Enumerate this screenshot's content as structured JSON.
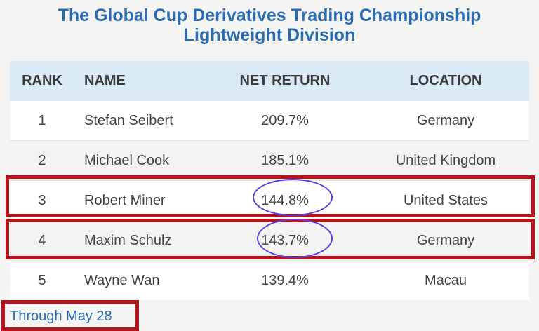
{
  "title": {
    "line1": "The Global Cup Derivatives Trading Championship",
    "line2": "Lightweight Division"
  },
  "table": {
    "headers": {
      "rank": "RANK",
      "name": "NAME",
      "net_return": "NET RETURN",
      "location": "LOCATION"
    },
    "rows": [
      {
        "rank": "1",
        "name": "Stefan Seibert",
        "net_return": "209.7%",
        "location": "Germany"
      },
      {
        "rank": "2",
        "name": "Michael Cook",
        "net_return": "185.1%",
        "location": "United Kingdom"
      },
      {
        "rank": "3",
        "name": "Robert Miner",
        "net_return": "144.8%",
        "location": "United States"
      },
      {
        "rank": "4",
        "name": "Maxim Schulz",
        "net_return": "143.7%",
        "location": "Germany"
      },
      {
        "rank": "5",
        "name": "Wayne Wan",
        "net_return": "139.4%",
        "location": "Macau"
      }
    ]
  },
  "footnote": "Through May 28",
  "colors": {
    "title": "#2b6cb0",
    "header_bg": "#d9eaf5",
    "highlight_box": "#b5141c",
    "circle": "#5b3fe0"
  }
}
